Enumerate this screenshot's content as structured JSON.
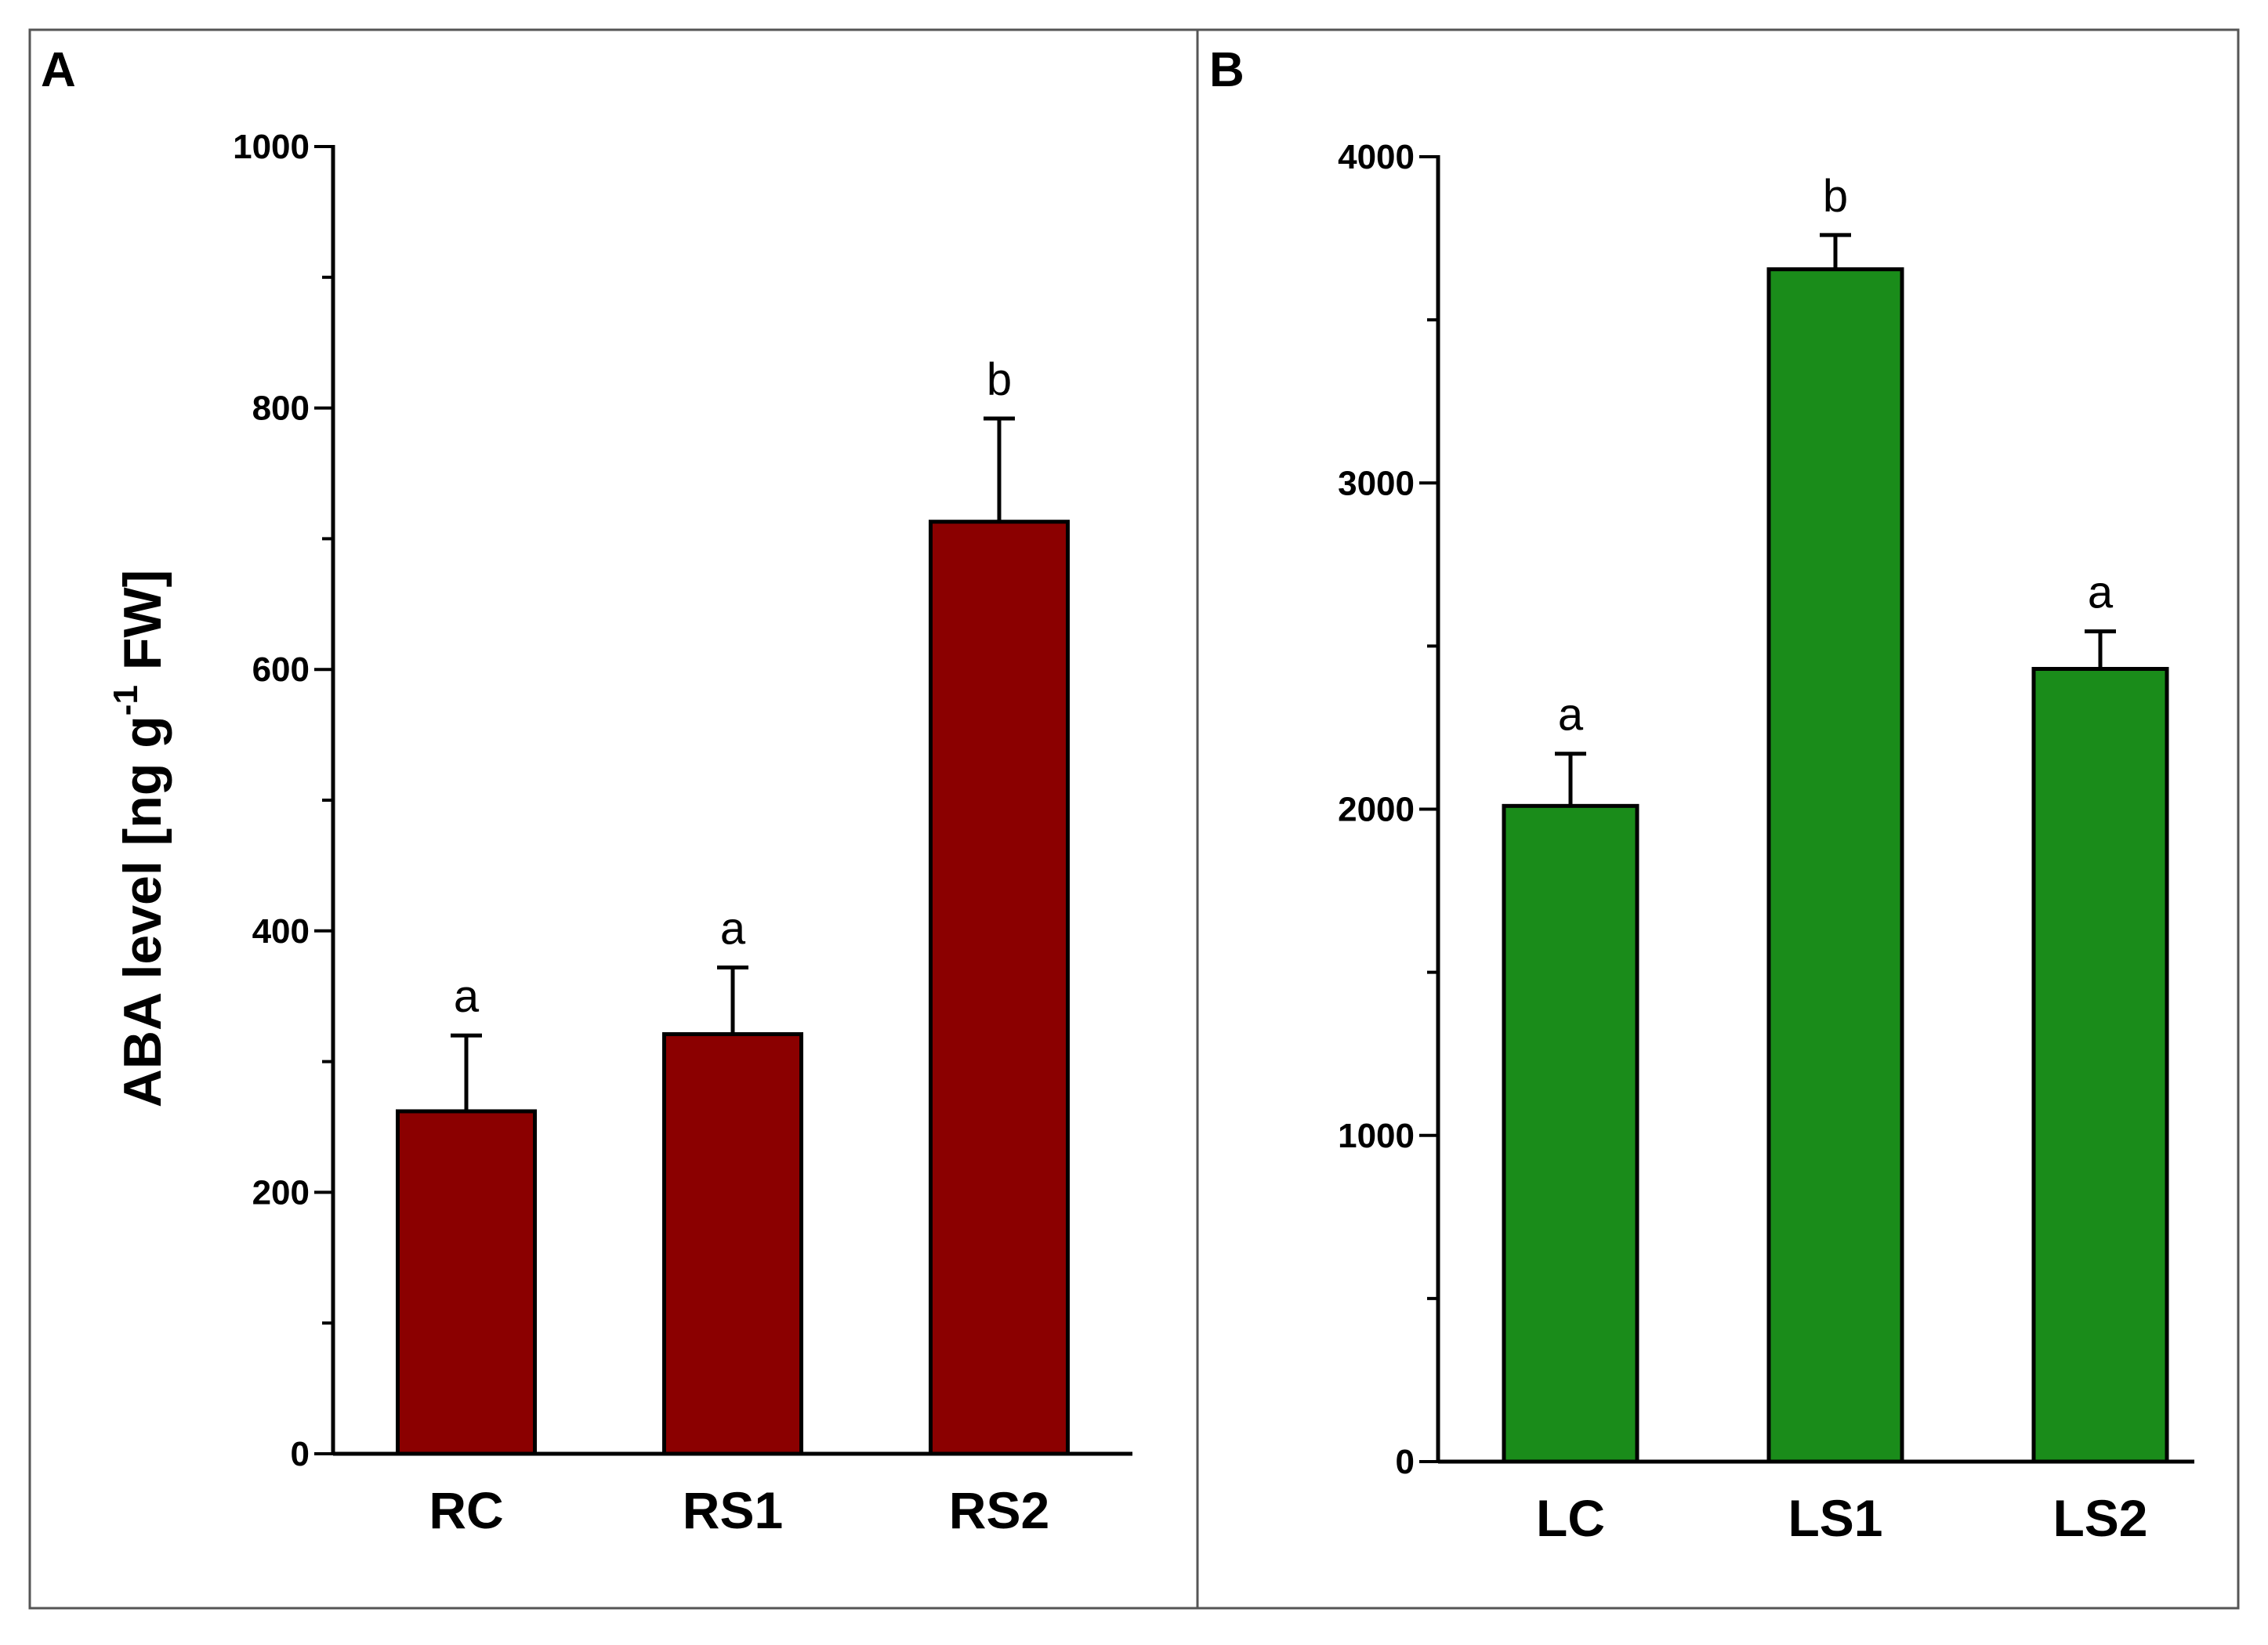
{
  "chart_data": [
    {
      "panel": "A",
      "type": "bar",
      "categories": [
        "RC",
        "RS1",
        "RS2"
      ],
      "values": [
        262,
        321,
        713
      ],
      "errors": [
        58,
        51,
        79
      ],
      "significance": [
        "a",
        "a",
        "b"
      ],
      "bar_color": "#8b0000",
      "ylabel": "ABA level [ng g-1 FW]",
      "ylabel_main": "ABA level [ng g",
      "ylabel_sup": "-1",
      "ylabel_tail": " FW]",
      "ylim": [
        0,
        1000
      ],
      "yticks": [
        0,
        200,
        400,
        600,
        800,
        1000
      ],
      "yticks_labels": [
        "0",
        "200",
        "400",
        "600",
        "800",
        "1000"
      ]
    },
    {
      "panel": "B",
      "type": "bar",
      "categories": [
        "LC",
        "LS1",
        "LS2"
      ],
      "values": [
        2010,
        3655,
        2430
      ],
      "errors": [
        160,
        105,
        115
      ],
      "significance": [
        "a",
        "b",
        "a"
      ],
      "bar_color": "#1a8c1a",
      "ylabel": "",
      "ylim": [
        0,
        4000
      ],
      "yticks": [
        0,
        1000,
        2000,
        3000,
        4000
      ],
      "yticks_labels": [
        "0",
        "1000",
        "2000",
        "3000",
        "4000"
      ]
    }
  ]
}
